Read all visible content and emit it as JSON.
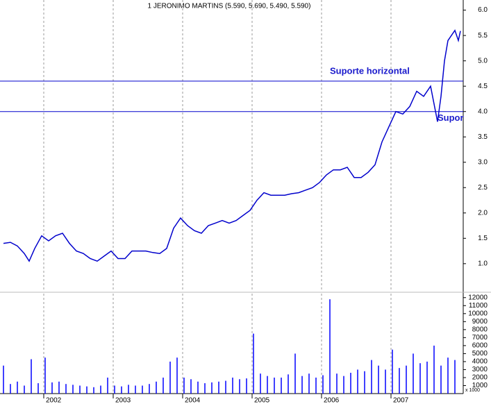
{
  "chart_data": [
    {
      "type": "line",
      "title": "1 JERONIMO MARTINS (5.590, 5.690, 5.490, 5.590)",
      "x": [
        2001.42,
        2001.52,
        2001.62,
        2001.72,
        2001.79,
        2001.87,
        2001.97,
        2002.07,
        2002.17,
        2002.27,
        2002.37,
        2002.47,
        2002.57,
        2002.67,
        2002.77,
        2002.87,
        2002.97,
        2003.07,
        2003.17,
        2003.27,
        2003.37,
        2003.47,
        2003.57,
        2003.67,
        2003.77,
        2003.87,
        2003.97,
        2004.07,
        2004.17,
        2004.27,
        2004.37,
        2004.47,
        2004.57,
        2004.67,
        2004.77,
        2004.87,
        2004.97,
        2005.07,
        2005.17,
        2005.27,
        2005.37,
        2005.47,
        2005.57,
        2005.67,
        2005.77,
        2005.87,
        2005.97,
        2006.07,
        2006.17,
        2006.27,
        2006.37,
        2006.47,
        2006.57,
        2006.67,
        2006.77,
        2006.87,
        2006.97,
        2007.07,
        2007.17,
        2007.27,
        2007.37,
        2007.47,
        2007.57,
        2007.67,
        2007.72,
        2007.77,
        2007.82,
        2007.87,
        2007.92,
        2007.97,
        2008.0
      ],
      "series": [
        {
          "color": "#0000cc",
          "values": [
            1.4,
            1.42,
            1.35,
            1.2,
            1.05,
            1.3,
            1.55,
            1.45,
            1.55,
            1.6,
            1.4,
            1.25,
            1.2,
            1.1,
            1.05,
            1.15,
            1.25,
            1.1,
            1.1,
            1.25,
            1.25,
            1.25,
            1.22,
            1.2,
            1.3,
            1.7,
            1.9,
            1.75,
            1.65,
            1.6,
            1.75,
            1.8,
            1.85,
            1.8,
            1.85,
            1.95,
            2.05,
            2.25,
            2.4,
            2.35,
            2.35,
            2.35,
            2.38,
            2.4,
            2.45,
            2.5,
            2.6,
            2.75,
            2.85,
            2.85,
            2.9,
            2.7,
            2.7,
            2.8,
            2.95,
            3.4,
            3.7,
            4.0,
            3.95,
            4.1,
            4.4,
            4.3,
            4.5,
            3.8,
            4.3,
            5.0,
            5.4,
            5.5,
            5.6,
            5.4,
            5.59
          ]
        }
      ],
      "xlim": [
        2001.37,
        2008.04
      ],
      "xticks": [
        2002,
        2003,
        2004,
        2005,
        2006,
        2007
      ],
      "ylim": [
        0.45,
        6.2
      ],
      "yticks": [
        {
          "value": 1.0,
          "label": "1.0"
        },
        1.5,
        {
          "value": 2.0,
          "label": "2.0"
        },
        2.5,
        {
          "value": 3.0,
          "label": "3.0"
        },
        3.5,
        {
          "value": 4.0,
          "label": "4.0"
        },
        4.5,
        {
          "value": 5.0,
          "label": "5.0"
        },
        5.5,
        {
          "value": 6.0,
          "label": "6.0"
        }
      ],
      "annotations": [
        {
          "text": "Suporte horizontal",
          "value": 4.6
        },
        {
          "text": "Supor",
          "value": 4.0
        }
      ],
      "grid": true
    },
    {
      "type": "bar",
      "y_label": "x 1000",
      "x": [
        2001.42,
        2001.52,
        2001.62,
        2001.72,
        2001.82,
        2001.92,
        2002.02,
        2002.12,
        2002.22,
        2002.32,
        2002.42,
        2002.52,
        2002.62,
        2002.72,
        2002.82,
        2002.92,
        2003.02,
        2003.12,
        2003.22,
        2003.32,
        2003.42,
        2003.52,
        2003.62,
        2003.72,
        2003.82,
        2003.92,
        2004.02,
        2004.12,
        2004.22,
        2004.32,
        2004.42,
        2004.52,
        2004.62,
        2004.72,
        2004.82,
        2004.92,
        2005.02,
        2005.12,
        2005.22,
        2005.32,
        2005.42,
        2005.52,
        2005.62,
        2005.72,
        2005.82,
        2005.92,
        2006.02,
        2006.12,
        2006.22,
        2006.32,
        2006.42,
        2006.52,
        2006.62,
        2006.72,
        2006.82,
        2006.92,
        2007.02,
        2007.12,
        2007.22,
        2007.32,
        2007.42,
        2007.52,
        2007.62,
        2007.72,
        2007.82,
        2007.92
      ],
      "series": [
        {
          "color": "#0000ff",
          "values": [
            3500,
            1200,
            1500,
            1000,
            4300,
            1300,
            4500,
            1400,
            1500,
            1200,
            1100,
            1000,
            900,
            800,
            1000,
            2000,
            1000,
            900,
            1100,
            1000,
            1000,
            1200,
            1500,
            2000,
            4000,
            4500,
            2000,
            1800,
            1500,
            1300,
            1400,
            1500,
            1600,
            2000,
            1800,
            1900,
            7500,
            2500,
            2200,
            2000,
            2000,
            2400,
            5000,
            2200,
            2500,
            2000,
            2300,
            11800,
            2500,
            2200,
            2600,
            3000,
            2800,
            4200,
            3500,
            3000,
            5500,
            3200,
            3500,
            5000,
            3800,
            4000,
            6000,
            3500,
            4500,
            4200
          ]
        }
      ],
      "xlim": [
        2001.37,
        2008.04
      ],
      "xticks": [
        2002,
        2003,
        2004,
        2005,
        2006,
        2007
      ],
      "ylim": [
        0,
        12500
      ],
      "yticks": [
        1000,
        2000,
        3000,
        4000,
        5000,
        6000,
        7000,
        8000,
        9000,
        10000,
        11000,
        12000
      ]
    }
  ]
}
